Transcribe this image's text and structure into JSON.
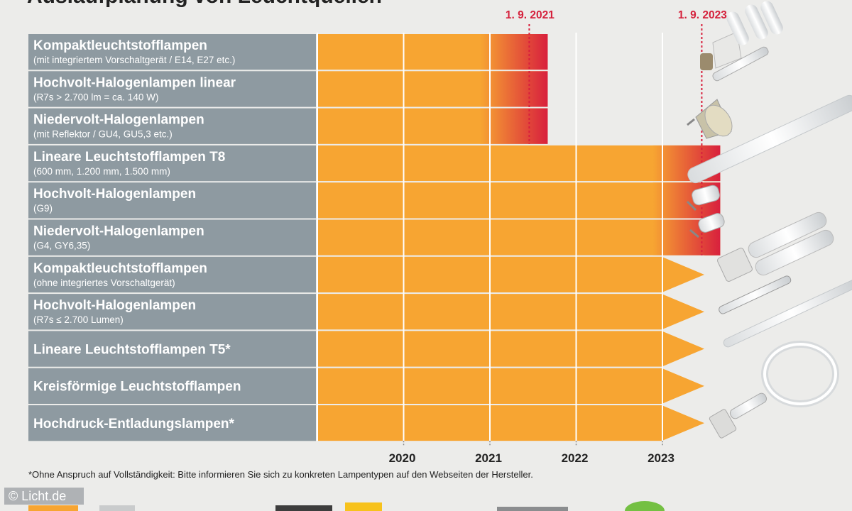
{
  "header": {
    "title": "Auslaufplanung von Leuchtquellen"
  },
  "chart_data": {
    "type": "gantt",
    "x": [
      2020,
      2021,
      2022,
      2023
    ],
    "xlabel": "",
    "ylabel": "",
    "xlim": [
      2019,
      2023
    ],
    "deadlines": [
      {
        "label": "1. 9. 2021",
        "value": 2021.67
      },
      {
        "label": "1. 9. 2023",
        "value": 2023.67
      }
    ],
    "rows": [
      {
        "title": "Kompaktleuchtstofflampen",
        "subtitle": "(mit integriertem Vorschaltgerät / E14, E27 etc.)",
        "end": 2021.67,
        "open": false
      },
      {
        "title": "Hochvolt-Halogenlampen linear",
        "subtitle": "(R7s > 2.700 lm = ca. 140 W)",
        "end": 2021.67,
        "open": false
      },
      {
        "title": "Niedervolt-Halogenlampen",
        "subtitle": "(mit Reflektor / GU4, GU5,3 etc.)",
        "end": 2021.67,
        "open": false
      },
      {
        "title": "Lineare Leuchtstofflampen T8",
        "subtitle": "(600 mm, 1.200 mm, 1.500 mm)",
        "end": 2023.67,
        "open": false
      },
      {
        "title": "Hochvolt-Halogenlampen",
        "subtitle": "(G9)",
        "end": 2023.67,
        "open": false
      },
      {
        "title": "Niedervolt-Halogenlampen",
        "subtitle": "(G4, GY6,35)",
        "end": 2023.67,
        "open": false
      },
      {
        "title": "Kompaktleuchtstofflampen",
        "subtitle": "(ohne integriertes Vorschaltgerät)",
        "end": null,
        "open": true
      },
      {
        "title": "Hochvolt-Halogenlampen",
        "subtitle": "(R7s ≤ 2.700 Lumen)",
        "end": null,
        "open": true
      },
      {
        "title": "Lineare Leuchtstofflampen T5*",
        "subtitle": "",
        "end": null,
        "open": true
      },
      {
        "title": "Kreisförmige Leuchtstofflampen",
        "subtitle": "",
        "end": null,
        "open": true
      },
      {
        "title": "Hochdruck-Entladungslampen*",
        "subtitle": "",
        "end": null,
        "open": true
      }
    ],
    "colors": {
      "label_bg": "#8e9aa1",
      "bar": "#f7a532",
      "end": "#d8203d",
      "grid": "#ffffff"
    }
  },
  "footnote": "*Ohne Anspruch auf Vollständigkeit: Bitte informieren Sie sich zu konkreten Lampentypen auf den Webseiten der Hersteller.",
  "credit": "© Licht.de"
}
